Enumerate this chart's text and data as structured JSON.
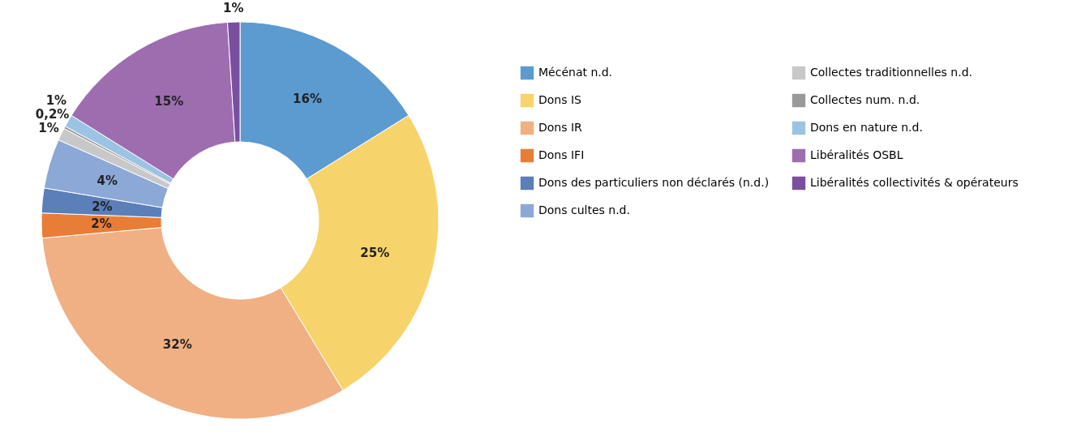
{
  "chart_data": {
    "type": "donut",
    "categories": [
      "Mécénat n.d.",
      "Dons IS",
      "Dons IR",
      "Dons IFI",
      "Dons des particuliers non déclarés (n.d.)",
      "Dons cultes n.d.",
      "Collectes traditionnelles n.d.",
      "Collectes num. n.d.",
      "Dons en nature n.d.",
      "Libéralités OSBL",
      "Libéralités collectivités & opérateurs"
    ],
    "values": [
      16,
      25,
      32,
      2,
      2,
      4,
      1,
      0.2,
      1,
      15,
      1
    ],
    "value_labels": [
      "16%",
      "25%",
      "32%",
      "2%",
      "2%",
      "4%",
      "1%",
      "0,2%",
      "1%",
      "15%",
      "1%"
    ],
    "colors": [
      "#5b9bd0",
      "#f7d36b",
      "#f0b083",
      "#e87d38",
      "#5b7fb8",
      "#8ca8d6",
      "#c8c8c8",
      "#999999",
      "#9bc4e4",
      "#9e6db0",
      "#7a4fa0"
    ],
    "legend": "right"
  }
}
